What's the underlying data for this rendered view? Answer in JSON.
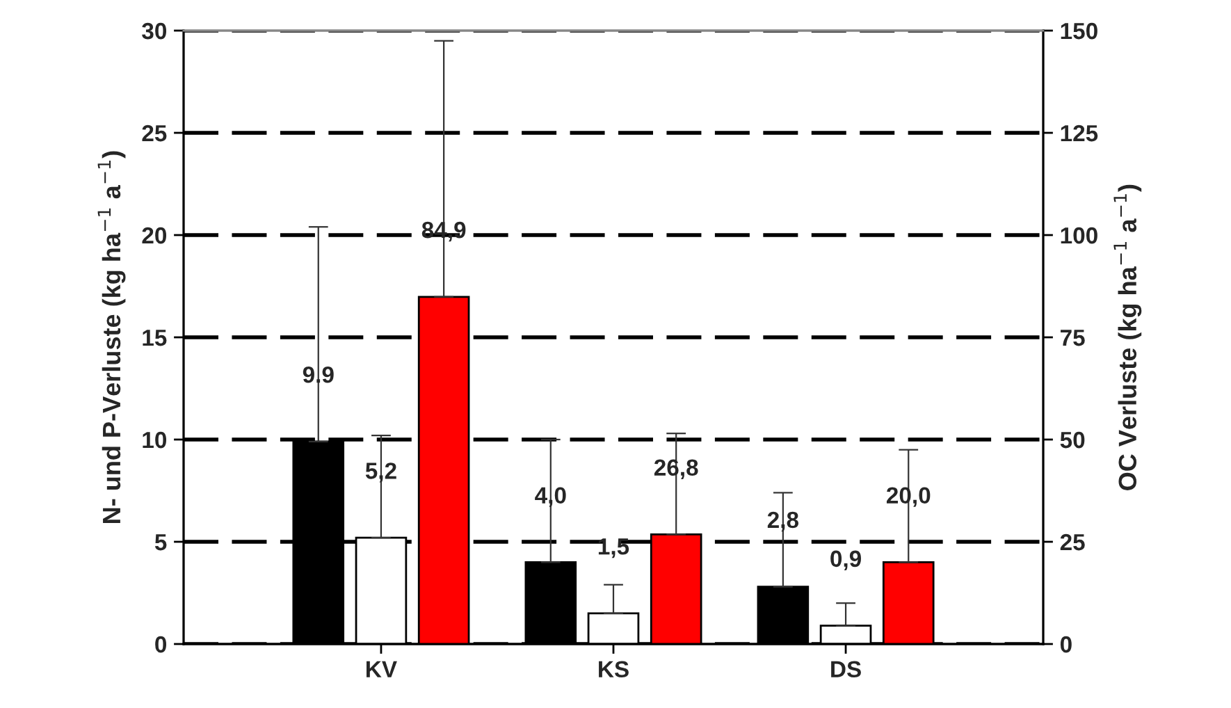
{
  "chart_data": {
    "type": "bar",
    "ylabel": "N- und P-Verluste (kg ha$^{−1}$ a$^{−1}$)",
    "y2label": "OC Verluste (kg ha$^{−1}$ a$^{−1}$)",
    "categories": [
      "KV",
      "KS",
      "DS"
    ],
    "series": [
      {
        "color": "#000000",
        "values": [
          9.9,
          4.0,
          2.8
        ],
        "value_labels": [
          "9.9",
          "4,0",
          "2,8"
        ],
        "errors": [
          [
            9.9,
            20.4
          ],
          [
            4.0,
            10.0
          ],
          [
            2.8,
            7.4
          ]
        ]
      },
      {
        "color": "#ffffff",
        "values": [
          5.2,
          1.5,
          0.9
        ],
        "value_labels": [
          "5,2",
          "1,5",
          "0,9"
        ],
        "errors": [
          [
            5.2,
            10.2
          ],
          [
            1.5,
            2.9
          ],
          [
            0.9,
            2.0
          ]
        ]
      },
      {
        "color": "#ff0000",
        "axis": "y2",
        "values": [
          84.9,
          26.8,
          20.0
        ],
        "value_labels": [
          "84,9",
          "26,8",
          "20,0"
        ],
        "errors": [
          [
            84.9,
            147.5
          ],
          [
            26.8,
            51.5
          ],
          [
            20.0,
            47.5
          ]
        ]
      }
    ],
    "ylim": [
      0,
      30
    ],
    "yticks": [
      0,
      5,
      10,
      15,
      20,
      25,
      30
    ],
    "y2lim": [
      0,
      150
    ],
    "y2ticks": [
      0,
      25,
      50,
      75,
      100,
      125,
      150
    ],
    "grid": "y"
  }
}
